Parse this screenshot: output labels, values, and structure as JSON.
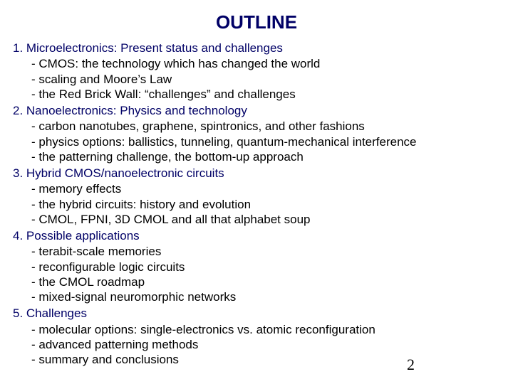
{
  "title": "OUTLINE",
  "page_number": "2",
  "colors": {
    "heading": "#000066",
    "body": "#000000",
    "background": "#ffffff"
  },
  "typography": {
    "title_fontsize": 26,
    "body_fontsize": 17,
    "pagenum_fontsize": 22,
    "title_weight": "bold"
  },
  "sections": [
    {
      "heading": "1. Microelectronics: Present status and challenges",
      "bullets": [
        "- CMOS: the technology which has changed the world",
        "- scaling and Moore’s Law",
        "- the Red Brick Wall: “challenges” and challenges"
      ]
    },
    {
      "heading": "2. Nanoelectronics: Physics and technology",
      "bullets": [
        "- carbon nanotubes, graphene, spintronics, and other fashions",
        "- physics options: ballistics, tunneling, quantum-mechanical interference",
        "- the patterning challenge, the bottom-up approach"
      ]
    },
    {
      "heading": "3. Hybrid CMOS/nanoelectronic circuits",
      "bullets": [
        "- memory effects",
        "- the hybrid circuits: history and evolution",
        "- CMOL, FPNI, 3D CMOL and all that alphabet soup"
      ]
    },
    {
      "heading": "4. Possible applications",
      "bullets": [
        "- terabit-scale memories",
        "- reconfigurable logic circuits",
        "- the CMOL roadmap",
        "- mixed-signal neuromorphic networks"
      ]
    },
    {
      "heading": "5. Challenges",
      "bullets": [
        "- molecular options: single-electronics vs. atomic reconfiguration",
        "- advanced patterning methods",
        "- summary and conclusions"
      ]
    }
  ]
}
